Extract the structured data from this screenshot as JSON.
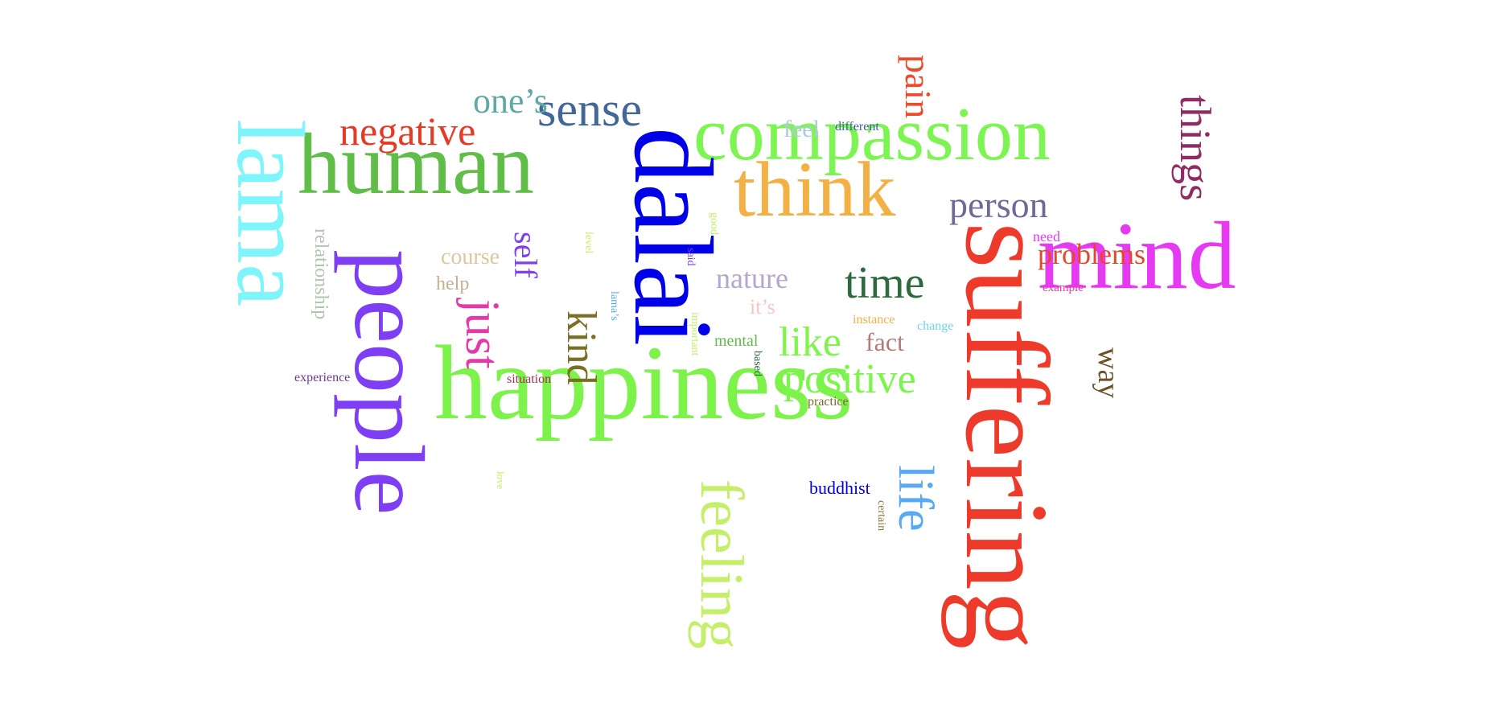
{
  "words": [
    {
      "text": "happiness",
      "color": "#7df24a"
    },
    {
      "text": "compassion",
      "color": "#7cf552"
    },
    {
      "text": "human",
      "color": "#5fbd48"
    },
    {
      "text": "dalai",
      "color": "#0000e8"
    },
    {
      "text": "lama",
      "color": "#7df5fa"
    },
    {
      "text": "suffering",
      "color": "#ee3a2a"
    },
    {
      "text": "people",
      "color": "#7e3ef4"
    },
    {
      "text": "mind",
      "color": "#e63af2"
    },
    {
      "text": "think",
      "color": "#f2b045"
    },
    {
      "text": "feeling",
      "color": "#c5ef6a"
    },
    {
      "text": "sense",
      "color": "#426796"
    },
    {
      "text": "negative",
      "color": "#e43b27"
    },
    {
      "text": "one’s",
      "color": "#5fa8a6"
    },
    {
      "text": "person",
      "color": "#6f6997"
    },
    {
      "text": "time",
      "color": "#2d6a3e"
    },
    {
      "text": "positive",
      "color": "#7cf54a"
    },
    {
      "text": "like",
      "color": "#7ef54a"
    },
    {
      "text": "life",
      "color": "#56a9f2"
    },
    {
      "text": "problems",
      "color": "#e4472b"
    },
    {
      "text": "things",
      "color": "#8f2c63"
    },
    {
      "text": "pain",
      "color": "#ec4b2c"
    },
    {
      "text": "just",
      "color": "#e43aa8"
    },
    {
      "text": "kind",
      "color": "#7a7023"
    },
    {
      "text": "self",
      "color": "#7e3ef4"
    },
    {
      "text": "way",
      "color": "#6b5325"
    },
    {
      "text": "nature",
      "color": "#b5a6d0"
    },
    {
      "text": "fact",
      "color": "#b47a74"
    },
    {
      "text": "course",
      "color": "#dcc8a0"
    },
    {
      "text": "help",
      "color": "#c7b08e"
    },
    {
      "text": "relationship",
      "color": "#b3c4b0"
    },
    {
      "text": "feel",
      "color": "#b0c8de"
    },
    {
      "text": "mental",
      "color": "#5fbd48"
    },
    {
      "text": "it’s",
      "color": "#f4c6c6"
    },
    {
      "text": "buddhist",
      "color": "#0000d8"
    },
    {
      "text": "need",
      "color": "#e63af2"
    },
    {
      "text": "different",
      "color": "#3a5ea0"
    },
    {
      "text": "experience",
      "color": "#6b3a8e"
    },
    {
      "text": "situation",
      "color": "#a0305a"
    },
    {
      "text": "example",
      "color": "#e43aa8"
    },
    {
      "text": "change",
      "color": "#70d4f2"
    },
    {
      "text": "instance",
      "color": "#f2b045"
    },
    {
      "text": "practice",
      "color": "#7a6a2a"
    },
    {
      "text": "certain",
      "color": "#8a7a3a"
    },
    {
      "text": "important",
      "color": "#c5ef6a"
    },
    {
      "text": "based",
      "color": "#2d6a3e"
    },
    {
      "text": "lama’s",
      "color": "#56a9f2"
    },
    {
      "text": "said",
      "color": "#7e3ef4"
    },
    {
      "text": "good",
      "color": "#c5ef6a"
    },
    {
      "text": "level",
      "color": "#c5ef6a"
    },
    {
      "text": "love",
      "color": "#c5ef6a"
    }
  ]
}
